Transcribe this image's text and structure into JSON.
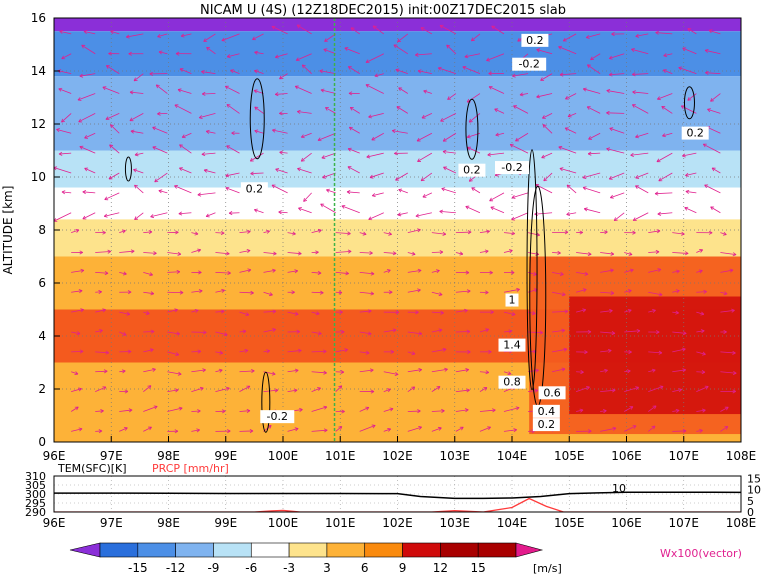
{
  "title": "NICAM U (4S) (12Z18DEC2015) init:00Z17DEC2015 slab",
  "colors": {
    "land_pink": "#e0208f",
    "precip_red": "#ff3b3b",
    "ref_line_green": "#3cb34a",
    "contour_black": "#000000",
    "text": "#000000"
  },
  "chart_data": [
    {
      "type": "heatmap",
      "ylabel": "ALTITUDE [km]",
      "x_ticks": [
        "96E",
        "97E",
        "98E",
        "99E",
        "100E",
        "101E",
        "102E",
        "103E",
        "104E",
        "105E",
        "106E",
        "107E",
        "108E"
      ],
      "y_ticks": [
        "0",
        "2",
        "4",
        "6",
        "8",
        "10",
        "12",
        "14",
        "16"
      ],
      "xlim": [
        96,
        108
      ],
      "ylim": [
        0,
        16
      ],
      "reference_line_lon": 100.9,
      "shading_levels": [
        -15,
        -12,
        -9,
        -6,
        -3,
        3,
        6,
        9,
        12,
        15
      ],
      "shading_colors": [
        "#8b2fd8",
        "#2a6fdc",
        "#4c8fe6",
        "#7fb3ef",
        "#b8e2f6",
        "#ffffff",
        "#fde38c",
        "#fdb238",
        "#f98a0e",
        "#f45a1e",
        "#cf0a0a",
        "#a80000",
        "#e31b8c"
      ],
      "zonal_wind_bands": [
        {
          "alt_range": [
            15.5,
            16
          ],
          "value": -16
        },
        {
          "alt_range": [
            13.8,
            15.5
          ],
          "value": -10
        },
        {
          "alt_range": [
            11,
            13.8
          ],
          "value": -8
        },
        {
          "alt_range": [
            9.6,
            11
          ],
          "value": -5
        },
        {
          "alt_range": [
            8.4,
            9.6
          ],
          "value": -1
        },
        {
          "alt_range": [
            7,
            8.4
          ],
          "value": 4
        },
        {
          "alt_range": [
            5,
            7
          ],
          "value": 8
        },
        {
          "alt_range": [
            3,
            5
          ],
          "value": 9
        },
        {
          "alt_range": [
            0,
            3
          ],
          "value": 8
        }
      ],
      "strong_wind_region": {
        "lon_range": [
          104.3,
          108
        ],
        "alt_range": [
          0.3,
          7
        ],
        "value": 14
      },
      "contour_labels": [
        {
          "text": "0.2",
          "lon": 99.5,
          "alt": 9.5
        },
        {
          "text": "0.2",
          "lon": 103.3,
          "alt": 10.2
        },
        {
          "text": "-0.2",
          "lon": 104.0,
          "alt": 10.3
        },
        {
          "text": "0.2",
          "lon": 107.2,
          "alt": 11.6
        },
        {
          "text": "-0.2",
          "lon": 104.3,
          "alt": 14.2
        },
        {
          "text": "0.2",
          "lon": 104.4,
          "alt": 15.1
        },
        {
          "text": "-0.2",
          "lon": 99.9,
          "alt": 0.9
        },
        {
          "text": "0.6",
          "lon": 104.7,
          "alt": 1.8
        },
        {
          "text": "0.4",
          "lon": 104.6,
          "alt": 1.1
        },
        {
          "text": "0.2",
          "lon": 104.6,
          "alt": 0.6
        },
        {
          "text": "0.8",
          "lon": 104.0,
          "alt": 2.2
        },
        {
          "text": "1",
          "lon": 104.0,
          "alt": 5.3
        },
        {
          "text": "1.4",
          "lon": 104.0,
          "alt": 3.6
        }
      ],
      "vector_legend": "Wx100(vector)"
    },
    {
      "type": "line",
      "series": [
        {
          "name": "TEM(SFC)[K]",
          "unit": "K",
          "x": [
            96,
            97,
            98,
            99,
            100,
            101,
            102,
            102.4,
            103,
            103.5,
            104,
            104.5,
            105,
            105.5,
            106,
            106.5,
            107,
            107.5,
            108
          ],
          "values": [
            300.5,
            300.5,
            300.4,
            300.3,
            300.3,
            300.3,
            300.2,
            298.6,
            297.6,
            297.6,
            297.8,
            298.6,
            300.2,
            300.6,
            301.0,
            301.0,
            301.0,
            301.0,
            300.9
          ]
        },
        {
          "name": "PRCP [mm/hr]",
          "unit": "mm/hr",
          "x": [
            96,
            99.5,
            99.8,
            100.0,
            100.3,
            102.6,
            103.0,
            103.5,
            104.0,
            104.3,
            104.6,
            104.9,
            108
          ],
          "values": [
            0,
            0,
            0.5,
            0.7,
            0,
            0,
            0.6,
            0,
            2.0,
            6.0,
            2.5,
            0,
            0
          ]
        }
      ],
      "annotation": "10",
      "left_ticks": [
        "310",
        "305",
        "300",
        "295",
        "290"
      ],
      "right_ticks": [
        "15",
        "10",
        "5",
        "0"
      ],
      "left_ylim": [
        290,
        310
      ],
      "right_ylim": [
        0,
        16
      ],
      "x_ticks": [
        "96E",
        "97E",
        "98E",
        "99E",
        "100E",
        "101E",
        "102E",
        "103E",
        "104E",
        "105E",
        "106E",
        "107E",
        "108E"
      ]
    }
  ],
  "colorbar": {
    "labels": [
      "-15",
      "-12",
      "-9",
      "-6",
      "-3",
      "3",
      "6",
      "9",
      "12",
      "15"
    ],
    "unit": "[m/s]"
  }
}
